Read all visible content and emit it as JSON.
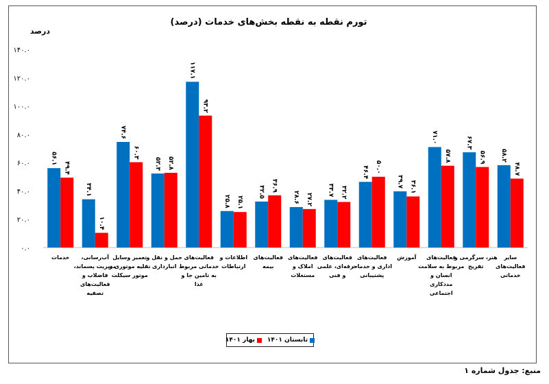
{
  "chart_data": {
    "type": "bar",
    "title": "تورم نقطه به نقطه بخش‌های خدمات (درصد)",
    "ylabel": "درصد",
    "ylim": [
      0,
      140
    ],
    "yticks": [
      0,
      20,
      40,
      60,
      80,
      100,
      120,
      140
    ],
    "ytick_labels": [
      "۰.۰",
      "۲۰.۰",
      "۴۰.۰",
      "۶۰.۰",
      "۸۰.۰",
      "۱۰۰.۰",
      "۱۲۰.۰",
      "۱۴۰.۰"
    ],
    "grid": false,
    "legend_position": "bottom",
    "categories": [
      "خدمات",
      "آب‌رسانی، مدیریت پسماند، فاضلاب و فعالیت‌های تصفیه",
      "تعمیر وسایل نقلیه موتوری و موتور سیکلت",
      "حمل و نقل و انبارداری",
      "فعالیت‌های خدماتی مربوط به تامین جا و غذا",
      "اطلاعات و ارتباطات",
      "فعالیت‌های بیمه",
      "فعالیت‌های املاک و مستغلات",
      "فعالیت‌های حرفه‌ای، علمی و فنی",
      "فعالیت‌های اداری و خدمات پشتیبانی",
      "آموزش",
      "فعالیت‌های مربوط به سلامت انسان و مددکاری اجتماعی",
      "هنر، سرگرمی و تفریح",
      "سایر فعالیت‌های خدماتی"
    ],
    "series": [
      {
        "name": "تابستان ۱۴۰۱",
        "color": "#0070c0",
        "values": [
          56.1,
          34.1,
          74.6,
          52.3,
          117.1,
          25.8,
          32.5,
          28.6,
          33.7,
          46.4,
          39.7,
          71.0,
          67.3,
          58.2
        ],
        "labels": [
          "۵۶.۱",
          "۳۴.۱",
          "۷۴.۶",
          "۵۲.۳",
          "۱۱۷.۱",
          "۲۵.۸",
          "۳۲.۵",
          "۲۸.۶",
          "۳۳.۷",
          "۴۶.۴",
          "۳۹.۷",
          "۷۱.۰",
          "۶۷.۳",
          "۵۸.۲"
        ]
      },
      {
        "name": "بهار ۱۴۰۱",
        "color": "#ff0000",
        "values": [
          49.4,
          10.4,
          60.3,
          52.8,
          93.2,
          25.1,
          36.9,
          27.2,
          32.2,
          50.0,
          36.1,
          57.8,
          56.9,
          48.7
        ],
        "labels": [
          "۴۹.۴",
          "۱۰.۴",
          "۶۰.۳",
          "۵۲.۸",
          "۹۳.۲",
          "۲۵.۱",
          "۳۶.۹",
          "۲۷.۲",
          "۳۲.۲",
          "۵۰.۰",
          "۳۶.۱",
          "۵۷.۸",
          "۵۶.۹",
          "۴۸.۷"
        ]
      }
    ]
  },
  "source": "منبع: جدول شماره ۱"
}
